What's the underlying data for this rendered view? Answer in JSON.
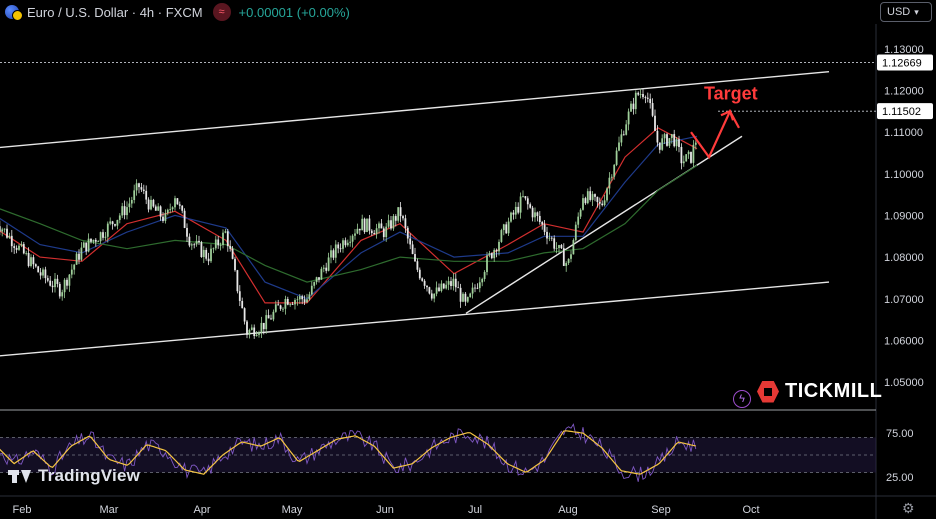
{
  "header": {
    "symbol": "Euro / U.S. Dollar · 4h · FXCM",
    "change": "+0.00001 (+0.00%)",
    "currency": "USD"
  },
  "brand": {
    "tv_logo": "TradingView",
    "broker_logo": "TICKMILL"
  },
  "colors": {
    "up": "#26a69a",
    "down": "#ef5350",
    "ema_fast": "#d32f2f",
    "ema_mid": "#1e3a8a",
    "ema_slow": "#2e6b2e",
    "target": "#ff3b3b",
    "rsi": "#7e57c2",
    "rsi_signal": "#f5c542"
  },
  "chart_data": [
    {
      "type": "candlestick",
      "instrument": "Euro / U.S. Dollar",
      "timeframe": "4h",
      "x_ticks": [
        "Feb",
        "Mar",
        "Apr",
        "May",
        "Jun",
        "Jul",
        "Aug",
        "Sep",
        "Oct"
      ],
      "y_ticks": [
        "1.13000",
        "1.12000",
        "1.11000",
        "1.10000",
        "1.09000",
        "1.08000",
        "1.07000",
        "1.06000",
        "1.05000"
      ],
      "ylim": [
        1.0445,
        1.1345
      ],
      "price_labels": [
        "1.12669",
        "1.11502"
      ],
      "price_path": [
        {
          "x": "Jan 23",
          "y": 1.089
        },
        {
          "x": "Jan 30",
          "y": 1.083
        },
        {
          "x": "Feb 7",
          "y": 1.076
        },
        {
          "x": "Feb 14",
          "y": 1.072
        },
        {
          "x": "Feb 21",
          "y": 1.082
        },
        {
          "x": "Feb 28",
          "y": 1.086
        },
        {
          "x": "Mar 7",
          "y": 1.092
        },
        {
          "x": "Mar 11",
          "y": 1.097
        },
        {
          "x": "Mar 15",
          "y": 1.092
        },
        {
          "x": "Mar 20",
          "y": 1.089
        },
        {
          "x": "Mar 23",
          "y": 1.095
        },
        {
          "x": "Mar 28",
          "y": 1.084
        },
        {
          "x": "Apr 3",
          "y": 1.08
        },
        {
          "x": "Apr 9",
          "y": 1.086
        },
        {
          "x": "Apr 13",
          "y": 1.072
        },
        {
          "x": "Apr 16",
          "y": 1.062
        },
        {
          "x": "Apr 22",
          "y": 1.064
        },
        {
          "x": "Apr 29",
          "y": 1.07
        },
        {
          "x": "May 6",
          "y": 1.07
        },
        {
          "x": "May 12",
          "y": 1.078
        },
        {
          "x": "May 17",
          "y": 1.083
        },
        {
          "x": "May 24",
          "y": 1.088
        },
        {
          "x": "Jun 1",
          "y": 1.086
        },
        {
          "x": "Jun 6",
          "y": 1.091
        },
        {
          "x": "Jun 11",
          "y": 1.078
        },
        {
          "x": "Jun 17",
          "y": 1.071
        },
        {
          "x": "Jun 24",
          "y": 1.074
        },
        {
          "x": "Jun 28",
          "y": 1.068
        },
        {
          "x": "Jul 5",
          "y": 1.079
        },
        {
          "x": "Jul 12",
          "y": 1.088
        },
        {
          "x": "Jul 17",
          "y": 1.094
        },
        {
          "x": "Jul 24",
          "y": 1.087
        },
        {
          "x": "Aug 1",
          "y": 1.078
        },
        {
          "x": "Aug 6",
          "y": 1.095
        },
        {
          "x": "Aug 12",
          "y": 1.092
        },
        {
          "x": "Aug 16",
          "y": 1.102
        },
        {
          "x": "Aug 20",
          "y": 1.112
        },
        {
          "x": "Aug 24",
          "y": 1.119
        },
        {
          "x": "Aug 27",
          "y": 1.12
        },
        {
          "x": "Aug 31",
          "y": 1.107
        },
        {
          "x": "Sep 5",
          "y": 1.109
        },
        {
          "x": "Sep 8",
          "y": 1.103
        },
        {
          "x": "Sep 11",
          "y": 1.104
        },
        {
          "x": "Sep 13",
          "y": 1.109
        }
      ],
      "indicators": [
        {
          "name": "fast",
          "path": [
            {
              "x": "Jan 23",
              "y": 1.087
            },
            {
              "x": "Feb 7",
              "y": 1.08
            },
            {
              "x": "Feb 21",
              "y": 1.079
            },
            {
              "x": "Mar 7",
              "y": 1.088
            },
            {
              "x": "Mar 23",
              "y": 1.091
            },
            {
              "x": "Apr 9",
              "y": 1.084
            },
            {
              "x": "Apr 22",
              "y": 1.069
            },
            {
              "x": "May 6",
              "y": 1.069
            },
            {
              "x": "May 24",
              "y": 1.084
            },
            {
              "x": "Jun 6",
              "y": 1.088
            },
            {
              "x": "Jun 24",
              "y": 1.076
            },
            {
              "x": "Jul 12",
              "y": 1.083
            },
            {
              "x": "Jul 24",
              "y": 1.088
            },
            {
              "x": "Aug 6",
              "y": 1.086
            },
            {
              "x": "Aug 20",
              "y": 1.104
            },
            {
              "x": "Aug 31",
              "y": 1.111
            },
            {
              "x": "Sep 13",
              "y": 1.106
            }
          ]
        },
        {
          "name": "mid",
          "path": [
            {
              "x": "Jan 23",
              "y": 1.09
            },
            {
              "x": "Feb 7",
              "y": 1.083
            },
            {
              "x": "Feb 21",
              "y": 1.081
            },
            {
              "x": "Mar 7",
              "y": 1.086
            },
            {
              "x": "Mar 23",
              "y": 1.09
            },
            {
              "x": "Apr 9",
              "y": 1.087
            },
            {
              "x": "Apr 22",
              "y": 1.074
            },
            {
              "x": "May 6",
              "y": 1.07
            },
            {
              "x": "May 24",
              "y": 1.081
            },
            {
              "x": "Jun 6",
              "y": 1.086
            },
            {
              "x": "Jun 24",
              "y": 1.08
            },
            {
              "x": "Jul 12",
              "y": 1.081
            },
            {
              "x": "Jul 24",
              "y": 1.085
            },
            {
              "x": "Aug 6",
              "y": 1.085
            },
            {
              "x": "Aug 20",
              "y": 1.098
            },
            {
              "x": "Aug 31",
              "y": 1.107
            },
            {
              "x": "Sep 13",
              "y": 1.109
            }
          ]
        },
        {
          "name": "slow",
          "path": [
            {
              "x": "Jan 23",
              "y": 1.092
            },
            {
              "x": "Feb 7",
              "y": 1.088
            },
            {
              "x": "Feb 21",
              "y": 1.084
            },
            {
              "x": "Mar 7",
              "y": 1.082
            },
            {
              "x": "Mar 23",
              "y": 1.084
            },
            {
              "x": "Apr 9",
              "y": 1.083
            },
            {
              "x": "Apr 22",
              "y": 1.078
            },
            {
              "x": "May 6",
              "y": 1.074
            },
            {
              "x": "May 24",
              "y": 1.077
            },
            {
              "x": "Jun 6",
              "y": 1.08
            },
            {
              "x": "Jun 24",
              "y": 1.079
            },
            {
              "x": "Jul 12",
              "y": 1.079
            },
            {
              "x": "Jul 24",
              "y": 1.081
            },
            {
              "x": "Aug 6",
              "y": 1.082
            },
            {
              "x": "Aug 20",
              "y": 1.088
            },
            {
              "x": "Aug 31",
              "y": 1.096
            },
            {
              "x": "Sep 13",
              "y": 1.102
            }
          ]
        }
      ],
      "trendlines": [
        {
          "name": "channel-upper",
          "from": {
            "x": "Jan 20",
            "y": 1.106
          },
          "to": {
            "x": "Oct 27",
            "y": 1.1245
          }
        },
        {
          "name": "channel-lower",
          "from": {
            "x": "Jan 20",
            "y": 1.056
          },
          "to": {
            "x": "Oct 27",
            "y": 1.074
          }
        },
        {
          "name": "rising-support",
          "from": {
            "x": "Jun 28",
            "y": 1.0665
          },
          "to": {
            "x": "Sep 28",
            "y": 1.109
          }
        }
      ],
      "horizontal_levels": [
        1.12669,
        1.11502
      ],
      "annotations": [
        {
          "text": "Target",
          "path": [
            {
              "x": "Sep 11",
              "y": 1.11
            },
            {
              "x": "Sep 17",
              "y": 1.104
            },
            {
              "x": "Sep 24",
              "y": 1.115
            },
            {
              "x": "Sep 27",
              "y": 1.111
            }
          ]
        }
      ]
    },
    {
      "type": "line",
      "name": "oscillator",
      "y_ticks": [
        "75.00",
        "25.00"
      ],
      "ylim": [
        10,
        90
      ],
      "levels": [
        70,
        50,
        30
      ],
      "values": [
        62,
        40,
        55,
        35,
        60,
        72,
        45,
        38,
        62,
        55,
        33,
        28,
        50,
        65,
        60,
        70,
        42,
        55,
        68,
        72,
        60,
        35,
        40,
        58,
        70,
        76,
        62,
        40,
        30,
        45,
        78,
        75,
        58,
        32,
        28,
        40,
        65,
        60
      ]
    }
  ]
}
